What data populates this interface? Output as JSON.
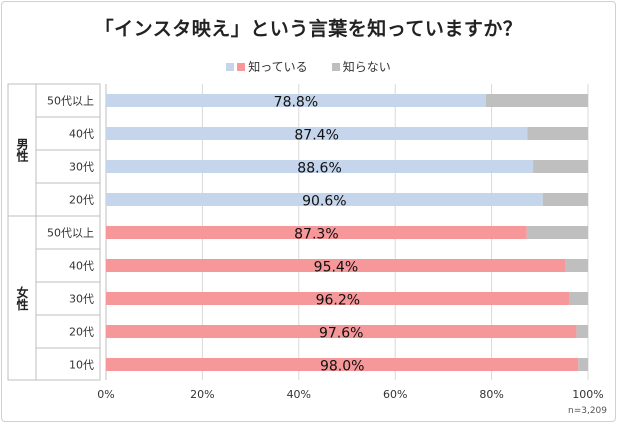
{
  "chart_data": {
    "type": "bar",
    "orientation": "horizontal",
    "stacked": true,
    "title": "「インスタ映え」という言葉を知っていますか？",
    "legend_position": "top",
    "series": [
      {
        "name": "知っている",
        "colors": {
          "男性": "#c5d5ec",
          "女性": "#f6979a"
        }
      },
      {
        "name": "知らない",
        "color": "#bfbfbf"
      }
    ],
    "groups": [
      {
        "label": "男性",
        "rows": [
          {
            "category": "50代以上",
            "value": 78.8,
            "label": "78.8%"
          },
          {
            "category": "40代",
            "value": 87.4,
            "label": "87.4%"
          },
          {
            "category": "30代",
            "value": 88.6,
            "label": "88.6%"
          },
          {
            "category": "20代",
            "value": 90.6,
            "label": "90.6%"
          }
        ]
      },
      {
        "label": "女性",
        "rows": [
          {
            "category": "50代以上",
            "value": 87.3,
            "label": "87.3%"
          },
          {
            "category": "40代",
            "value": 95.4,
            "label": "95.4%"
          },
          {
            "category": "30代",
            "value": 96.2,
            "label": "96.2%"
          },
          {
            "category": "20代",
            "value": 97.6,
            "label": "97.6%"
          },
          {
            "category": "10代",
            "value": 98.0,
            "label": "98.0%"
          }
        ]
      }
    ],
    "x_ticks": [
      "0%",
      "20%",
      "40%",
      "60%",
      "80%",
      "100%"
    ],
    "xlim": [
      0,
      100
    ],
    "grid": true,
    "note": "n=3,209"
  }
}
